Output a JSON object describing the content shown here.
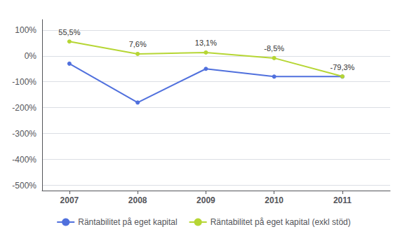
{
  "chart_data": {
    "type": "line",
    "x": [
      2007,
      2008,
      2009,
      2010,
      2011
    ],
    "xlim": [
      2006.6,
      2011.7
    ],
    "xticks": [
      2007,
      2008,
      2009,
      2010,
      2011
    ],
    "ylim": [
      -520,
      140
    ],
    "yticks": [
      {
        "value": 100,
        "label": "100%"
      },
      {
        "value": 0,
        "label": "0%"
      },
      {
        "value": -100,
        "label": "-100%"
      },
      {
        "value": -200,
        "label": "-200%"
      },
      {
        "value": -300,
        "label": "-300%"
      },
      {
        "value": -400,
        "label": "-400%"
      },
      {
        "value": -500,
        "label": "-500%"
      }
    ],
    "grid": true,
    "legend": "bottom",
    "series": [
      {
        "name": "Räntabilitet på eget kapital",
        "values": [
          -30,
          -180,
          -50,
          -80,
          -80
        ],
        "marker": "circle",
        "line_style": "solid"
      },
      {
        "name": "Räntabilitet på eget kapital (exkl stöd)",
        "values": [
          55.5,
          7.6,
          13.1,
          -8.5,
          -79.3
        ],
        "marker": "circle",
        "line_style": "solid",
        "data_labels": true,
        "value_labels": [
          "55,5%",
          "7,6%",
          "13,1%",
          "-8,5%",
          "-79,3%"
        ]
      }
    ]
  }
}
